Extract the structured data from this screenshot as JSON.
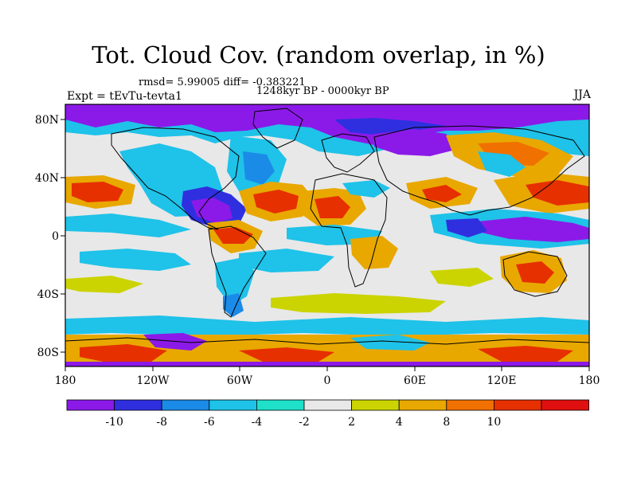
{
  "title": "Tot. Cloud Cov. (random overlap, in %)",
  "stats": "rmsd= 5.99005 diff= -0.383221",
  "period": "1248kyr BP - 0000kyr BP",
  "experiment": "Expt = tEvTu-tevta1",
  "season": "JJA",
  "lat_labels": [
    "80N",
    "40N",
    "0",
    "40S",
    "80S"
  ],
  "lon_labels": [
    "180",
    "120W",
    "60W",
    "0",
    "60E",
    "120E",
    "180"
  ],
  "colorbar": {
    "labels": [
      "-10",
      "-8",
      "-6",
      "-4",
      "-2",
      "2",
      "4",
      "8",
      "10"
    ],
    "colors": [
      "#8b1ae8",
      "#2f2fe0",
      "#1b8be8",
      "#1fc2e8",
      "#1fe0c8",
      "#e8e8e8",
      "#cbd400",
      "#e8a800",
      "#f07000",
      "#e63000",
      "#e01010"
    ]
  },
  "palette": {
    "neutral": "#e8e8e8",
    "purple": "#8b1ae8",
    "blue": "#2f2fe0",
    "mid_blue": "#1b8be8",
    "cyan": "#1fc2e8",
    "teal": "#1fe0c8",
    "yellow": "#cbd400",
    "orange": "#e8a800",
    "dark_orange": "#f07000",
    "red_orange": "#e63000",
    "red": "#e01010"
  }
}
